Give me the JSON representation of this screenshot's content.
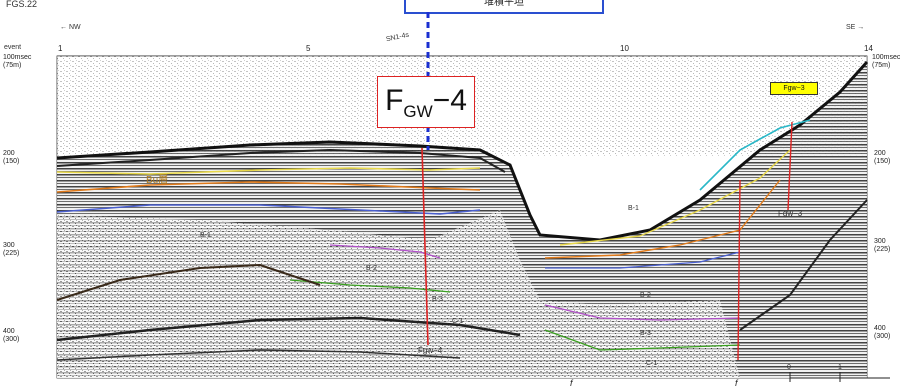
{
  "header": {
    "left_code": "FGS.22",
    "callout_text": "堆積平坦",
    "direction_left": "NW",
    "direction_right": "SE",
    "station_label": "SN1-4s"
  },
  "top_axis": {
    "event_label": "event",
    "ticks": [
      "1",
      "5",
      "10",
      "14"
    ]
  },
  "left_axis": {
    "top": [
      "100msec",
      "(75m)"
    ],
    "ticks": [
      [
        "200",
        "(150)"
      ],
      [
        "300",
        "(225)"
      ],
      [
        "400",
        "(300)"
      ]
    ]
  },
  "right_axis": {
    "top": [
      "100msec",
      "(75m)"
    ],
    "ticks": [
      [
        "200",
        "(150)"
      ],
      [
        "300",
        "(225)"
      ],
      [
        "400",
        "(300)"
      ]
    ]
  },
  "faults": {
    "main_box_main": "F",
    "main_box_sub": "GW",
    "main_box_suffix": "−4",
    "main_label": "Fgw−4",
    "secondary_tag": "Fgw−3",
    "secondary_label": "Fgw−3",
    "f_marks": [
      "f",
      "f"
    ]
  },
  "layers": {
    "bu_label": "Bu層",
    "inner_labels": [
      "B-1",
      "B-1",
      "B-2",
      "B-3",
      "C-1",
      "B-2",
      "B-3",
      "C-1"
    ]
  },
  "scale_bar": {
    "labels": [
      "0",
      "1"
    ]
  },
  "colors": {
    "callout_border": "#2a4fd0",
    "fault_box_border": "#dd2222",
    "fault_line": "#dd2222",
    "dashed_line": "#1a2fd0",
    "horizon_yellow": "#e8d84a",
    "horizon_orange": "#e07a1a",
    "horizon_blue": "#4a5fd0",
    "horizon_purple": "#b050c8",
    "horizon_green": "#3aa020",
    "horizon_cyan": "#2ab8c8",
    "tag_yellow": "#ffff00"
  }
}
